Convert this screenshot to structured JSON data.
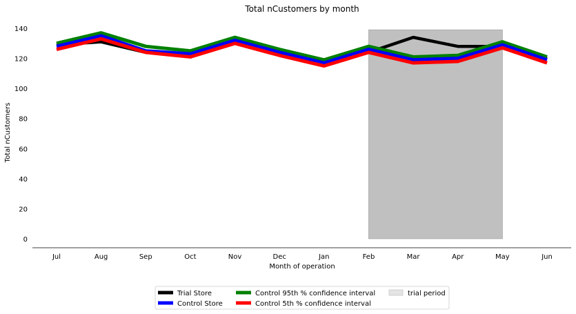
{
  "chart_data": {
    "type": "line",
    "title": "Total nCustomers by month",
    "xlabel": "Month of operation",
    "ylabel": "Total nCustomers",
    "categories": [
      "Jul",
      "Aug",
      "Sep",
      "Oct",
      "Nov",
      "Dec",
      "Jan",
      "Feb",
      "Mar",
      "Apr",
      "May",
      "Jun"
    ],
    "ylim": [
      -6,
      146
    ],
    "yticks": [
      "0",
      "20",
      "40",
      "60",
      "80",
      "100",
      "120",
      "140"
    ],
    "ytick_values": [
      0,
      20,
      40,
      60,
      80,
      100,
      120,
      140
    ],
    "grid": false,
    "legend_position": "bottom-center",
    "shaded_region": {
      "label": "trial period",
      "x_start": "Feb",
      "x_end": "May",
      "y_start": 0,
      "y_end": 139,
      "color": "#c0c0c0"
    },
    "series": [
      {
        "name": "Trial Store",
        "color": "#000000",
        "values": [
          129,
          131,
          124,
          122,
          131,
          126,
          116,
          124,
          134,
          128,
          128,
          120
        ]
      },
      {
        "name": "Control Store",
        "color": "#0000ff",
        "values": [
          128,
          135,
          125,
          123,
          132,
          124,
          117,
          126,
          119,
          120,
          129,
          119
        ]
      },
      {
        "name": "Control 95th % confidence interval",
        "color": "#008000",
        "values": [
          130,
          137,
          128,
          125,
          134,
          126,
          119,
          128,
          121,
          122,
          131,
          121
        ]
      },
      {
        "name": "Control 5th % confidence interval",
        "color": "#ff0000",
        "values": [
          126,
          133,
          124,
          121,
          130,
          122,
          115,
          124,
          117,
          118,
          127,
          117
        ]
      }
    ]
  }
}
